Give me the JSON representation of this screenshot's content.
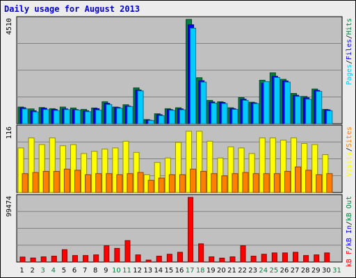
{
  "title": "Daily usage for August 2013",
  "colors": {
    "pages": "#00ccff",
    "files": "#0000ff",
    "hits": "#008040",
    "visits": "#ffff00",
    "sites": "#ff8000",
    "kbytes": "#ff0000",
    "weekend_day": "#008040",
    "weekday": "#000000",
    "panel_bg": "#c0c0c0",
    "frame_bg": "#ececec"
  },
  "legend": {
    "top": [
      {
        "label": "Pages",
        "color": "#00ccff"
      },
      {
        "label": "/",
        "color": "#000000"
      },
      {
        "label": "Files",
        "color": "#0000ff"
      },
      {
        "label": "/",
        "color": "#000000"
      },
      {
        "label": "Hits",
        "color": "#008040"
      }
    ],
    "middle": [
      {
        "label": "Visits",
        "color": "#ffff00"
      },
      {
        "label": "/",
        "color": "#000000"
      },
      {
        "label": "Sites",
        "color": "#ff8000"
      }
    ],
    "bottom": [
      {
        "label": "kB F",
        "color": "#ff0000"
      },
      {
        "label": "/",
        "color": "#000000"
      },
      {
        "label": "kB In",
        "color": "#0000ff"
      },
      {
        "label": "/",
        "color": "#000000"
      },
      {
        "label": "kB Out",
        "color": "#008040"
      }
    ]
  },
  "chart_data": {
    "type": "bar",
    "title": "Daily usage for August 2013",
    "categories": [
      "1",
      "2",
      "3",
      "4",
      "5",
      "6",
      "7",
      "8",
      "9",
      "10",
      "11",
      "12",
      "13",
      "14",
      "15",
      "16",
      "17",
      "18",
      "19",
      "20",
      "21",
      "22",
      "23",
      "24",
      "25",
      "26",
      "27",
      "28",
      "29",
      "30",
      "31"
    ],
    "weekend_days": [
      "3",
      "4",
      "10",
      "11",
      "17",
      "18",
      "24",
      "25",
      "31"
    ],
    "panels": [
      {
        "ymax_label": "4510",
        "ylim": [
          0,
          4510
        ],
        "series": [
          {
            "name": "Hits",
            "values": [
              720,
              640,
              700,
              650,
              720,
              680,
              620,
              680,
              950,
              720,
              820,
              1550,
              180,
              430,
              650,
              690,
              4510,
              1990,
              1010,
              950,
              690,
              1130,
              930,
              1880,
              2200,
              1920,
              1310,
              1180,
              1500,
              620,
              0
            ]
          },
          {
            "name": "Files",
            "values": [
              690,
              560,
              670,
              620,
              640,
              610,
              560,
              650,
              880,
              700,
              760,
              1460,
              150,
              390,
              610,
              640,
              4280,
              1860,
              940,
              920,
              650,
              1060,
              900,
              1750,
              2050,
              1850,
              1230,
              1120,
              1440,
              600,
              0
            ]
          },
          {
            "name": "Pages",
            "values": [
              640,
              510,
              610,
              570,
              610,
              590,
              520,
              590,
              830,
              670,
              740,
              1420,
              140,
              350,
              580,
              600,
              4130,
              1800,
              890,
              870,
              620,
              1010,
              870,
              1820,
              2000,
              1800,
              1180,
              1060,
              1400,
              560,
              0
            ]
          }
        ]
      },
      {
        "ymax_label": "116",
        "ylim": [
          0,
          116
        ],
        "series": [
          {
            "name": "Visits",
            "values": [
              80,
              98,
              86,
              98,
              84,
              86,
              70,
              74,
              78,
              80,
              92,
              72,
              32,
              54,
              62,
              90,
              110,
              110,
              92,
              62,
              82,
              80,
              70,
              98,
              98,
              94,
              98,
              88,
              86,
              68,
              0
            ]
          },
          {
            "name": "Sites",
            "values": [
              34,
              36,
              38,
              38,
              42,
              40,
              32,
              34,
              34,
              32,
              34,
              36,
              22,
              26,
              32,
              32,
              42,
              38,
              34,
              30,
              34,
              36,
              34,
              34,
              34,
              38,
              46,
              40,
              32,
              34,
              0
            ]
          }
        ]
      },
      {
        "ymax_label": "99474",
        "ylim": [
          0,
          99474
        ],
        "series": [
          {
            "name": "kB F",
            "values": [
              7700,
              6200,
              8000,
              9000,
              19000,
              10000,
              10000,
              11000,
              25000,
              21000,
              33000,
              11000,
              3000,
              9000,
              12000,
              15000,
              99474,
              28000,
              8000,
              6000,
              8000,
              25000,
              9000,
              12000,
              14000,
              14000,
              15000,
              10000,
              11000,
              14000,
              0
            ]
          }
        ]
      }
    ]
  }
}
